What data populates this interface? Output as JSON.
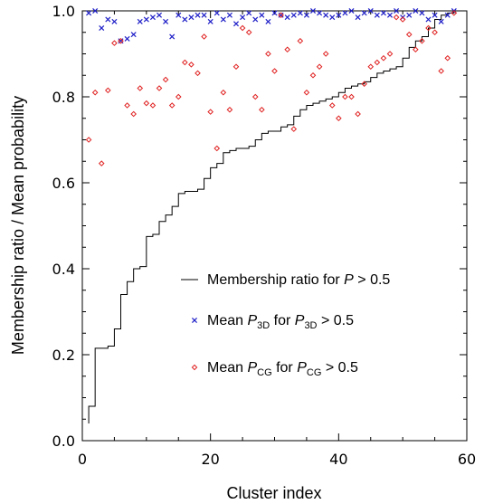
{
  "chart_data": {
    "type": "scatter",
    "xlabel": "Cluster index",
    "ylabel": "Membership ratio / Mean probability",
    "xlim": [
      0,
      60
    ],
    "ylim": [
      0.0,
      1.0
    ],
    "x_ticks": [
      0,
      20,
      40,
      60
    ],
    "y_ticks": [
      0.0,
      0.2,
      0.4,
      0.6,
      0.8,
      1.0
    ],
    "y_tick_labels": [
      "0.0",
      "0.2",
      "0.4",
      "0.6",
      "0.8",
      "1.0"
    ],
    "legend_position": "lower-right",
    "series": [
      {
        "name": "Membership ratio for P > 0.5",
        "legend": {
          "prefix": "Membership ratio for ",
          "sym": "P",
          "suffix": " > 0.5"
        },
        "style": "step",
        "color": "#000000",
        "x": [
          1,
          2,
          3,
          4,
          5,
          6,
          7,
          8,
          9,
          10,
          11,
          12,
          13,
          14,
          15,
          16,
          17,
          18,
          19,
          20,
          21,
          22,
          23,
          24,
          25,
          26,
          27,
          28,
          29,
          30,
          31,
          32,
          33,
          34,
          35,
          36,
          37,
          38,
          39,
          40,
          41,
          42,
          43,
          44,
          45,
          46,
          47,
          48,
          49,
          50,
          51,
          52,
          53,
          54,
          55,
          56,
          57,
          58
        ],
        "y": [
          0.08,
          0.215,
          0.215,
          0.22,
          0.26,
          0.34,
          0.37,
          0.4,
          0.405,
          0.475,
          0.48,
          0.51,
          0.525,
          0.545,
          0.575,
          0.58,
          0.58,
          0.585,
          0.61,
          0.635,
          0.645,
          0.67,
          0.675,
          0.68,
          0.68,
          0.685,
          0.7,
          0.715,
          0.72,
          0.72,
          0.73,
          0.735,
          0.755,
          0.77,
          0.78,
          0.785,
          0.79,
          0.795,
          0.8,
          0.81,
          0.82,
          0.825,
          0.83,
          0.835,
          0.845,
          0.855,
          0.86,
          0.865,
          0.87,
          0.89,
          0.915,
          0.93,
          0.94,
          0.96,
          0.98,
          0.99,
          0.995,
          1.0
        ]
      },
      {
        "name": "Mean P3D for P3D > 0.5",
        "legend": {
          "prefix": "Mean ",
          "sym": "P",
          "sub": "3D",
          "mid": " for ",
          "sym2": "P",
          "sub2": "3D",
          "suffix": " > 0.5"
        },
        "style": "marker-x",
        "color": "#1f1fc8",
        "x": [
          1,
          2,
          3,
          4,
          5,
          6,
          7,
          8,
          9,
          10,
          11,
          12,
          13,
          14,
          15,
          16,
          17,
          18,
          19,
          20,
          21,
          22,
          23,
          24,
          25,
          26,
          27,
          28,
          29,
          30,
          31,
          32,
          33,
          34,
          35,
          36,
          37,
          38,
          39,
          40,
          41,
          42,
          43,
          44,
          45,
          46,
          47,
          48,
          49,
          50,
          51,
          52,
          53,
          54,
          55,
          56,
          57,
          58
        ],
        "y": [
          0.995,
          1.0,
          0.96,
          0.98,
          0.975,
          0.93,
          0.935,
          0.945,
          0.975,
          0.98,
          0.985,
          0.99,
          0.975,
          0.94,
          0.99,
          0.98,
          0.985,
          0.99,
          0.99,
          0.975,
          0.995,
          0.98,
          0.99,
          0.97,
          0.985,
          0.995,
          0.98,
          0.99,
          0.975,
          0.995,
          0.99,
          0.985,
          0.99,
          0.995,
          0.99,
          1.0,
          0.995,
          0.99,
          0.985,
          0.99,
          0.995,
          1.0,
          0.985,
          0.995,
          1.0,
          0.99,
          0.995,
          0.99,
          1.0,
          0.985,
          0.99,
          1.0,
          0.995,
          0.98,
          0.99,
          0.975,
          0.99,
          1.0
        ]
      },
      {
        "name": "Mean PCG for PCG > 0.5",
        "legend": {
          "prefix": "Mean ",
          "sym": "P",
          "sub": "CG",
          "mid": " for ",
          "sym2": "P",
          "sub2": "CG",
          "suffix": " > 0.5"
        },
        "style": "marker-diamond",
        "color": "#e02020",
        "x": [
          1,
          2,
          3,
          4,
          5,
          6,
          7,
          8,
          9,
          10,
          11,
          12,
          13,
          14,
          15,
          16,
          17,
          18,
          19,
          20,
          21,
          22,
          23,
          24,
          25,
          26,
          27,
          28,
          29,
          30,
          31,
          32,
          33,
          34,
          35,
          36,
          37,
          38,
          39,
          40,
          41,
          42,
          43,
          44,
          45,
          46,
          47,
          48,
          49,
          50,
          51,
          52,
          53,
          54,
          55,
          56,
          57,
          58
        ],
        "y": [
          0.7,
          0.81,
          0.645,
          0.815,
          0.925,
          0.93,
          0.78,
          0.76,
          0.82,
          0.785,
          0.78,
          0.82,
          0.84,
          0.78,
          0.8,
          0.88,
          0.875,
          0.855,
          0.94,
          0.765,
          0.68,
          0.81,
          0.77,
          0.87,
          0.96,
          0.95,
          0.8,
          0.77,
          0.9,
          0.86,
          0.99,
          0.91,
          0.725,
          0.93,
          0.81,
          0.85,
          0.87,
          0.9,
          0.78,
          0.75,
          0.8,
          0.8,
          0.76,
          0.83,
          0.87,
          0.88,
          0.89,
          0.9,
          0.985,
          0.98,
          0.945,
          0.91,
          0.93,
          0.96,
          0.95,
          0.86,
          0.89,
          0.995
        ]
      }
    ]
  }
}
